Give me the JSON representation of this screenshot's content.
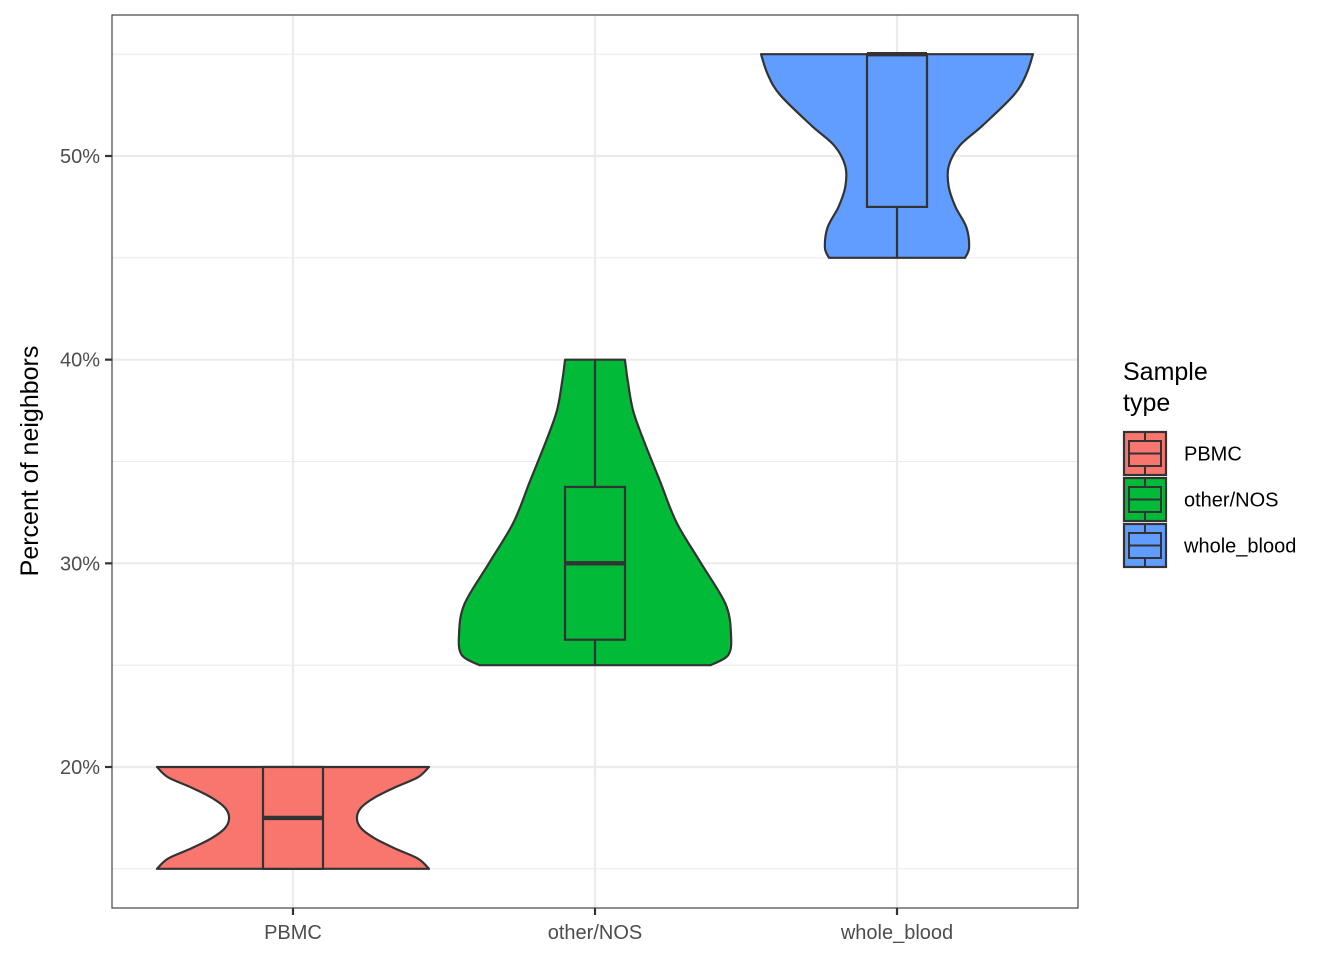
{
  "chart_data": {
    "type": "violin",
    "categories": [
      "PBMC",
      "other/NOS",
      "whole_blood"
    ],
    "ylabel": "Percent of neighbors",
    "xlabel": "",
    "ylim": [
      0.13,
      0.57
    ],
    "y_ticks": [
      0.2,
      0.3,
      0.4,
      0.5
    ],
    "y_tick_labels": [
      "20%",
      "30%",
      "40%",
      "50%"
    ],
    "grid": true,
    "legend": {
      "title_lines": [
        "Sample",
        "type"
      ],
      "position": "right",
      "entries": [
        "PBMC",
        "other/NOS",
        "whole_blood"
      ]
    },
    "colors": [
      "#F8766D",
      "#00BA38",
      "#619CFF"
    ],
    "series": [
      {
        "name": "PBMC",
        "box": {
          "min": 0.15,
          "q1": 0.15,
          "median": 0.175,
          "q3": 0.2,
          "max": 0.2
        },
        "density": [
          [
            0.15,
            1.0
          ],
          [
            0.155,
            0.92
          ],
          [
            0.16,
            0.75
          ],
          [
            0.165,
            0.6
          ],
          [
            0.17,
            0.5
          ],
          [
            0.175,
            0.47
          ],
          [
            0.18,
            0.5
          ],
          [
            0.185,
            0.6
          ],
          [
            0.19,
            0.75
          ],
          [
            0.195,
            0.92
          ],
          [
            0.2,
            1.0
          ]
        ]
      },
      {
        "name": "other/NOS",
        "box": {
          "min": 0.25,
          "q1": 0.2625,
          "median": 0.3,
          "q3": 0.3375,
          "max": 0.4
        },
        "density": [
          [
            0.25,
            0.85
          ],
          [
            0.255,
            0.98
          ],
          [
            0.265,
            1.0
          ],
          [
            0.28,
            0.96
          ],
          [
            0.3,
            0.78
          ],
          [
            0.32,
            0.6
          ],
          [
            0.34,
            0.48
          ],
          [
            0.36,
            0.36
          ],
          [
            0.375,
            0.28
          ],
          [
            0.39,
            0.24
          ],
          [
            0.4,
            0.22
          ]
        ]
      },
      {
        "name": "whole_blood",
        "box": {
          "min": 0.45,
          "q1": 0.475,
          "median": 0.55,
          "q3": 0.55,
          "max": 0.55
        },
        "density": [
          [
            0.45,
            0.5
          ],
          [
            0.455,
            0.53
          ],
          [
            0.465,
            0.51
          ],
          [
            0.475,
            0.43
          ],
          [
            0.485,
            0.38
          ],
          [
            0.495,
            0.38
          ],
          [
            0.505,
            0.46
          ],
          [
            0.515,
            0.63
          ],
          [
            0.53,
            0.86
          ],
          [
            0.54,
            0.95
          ],
          [
            0.55,
            1.0
          ]
        ]
      }
    ]
  }
}
